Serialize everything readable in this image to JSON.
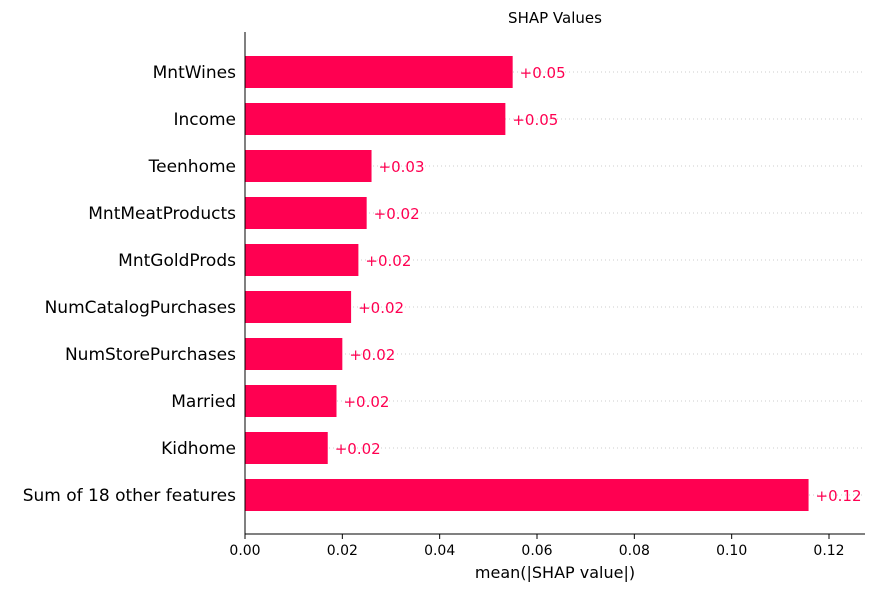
{
  "chart_data": {
    "type": "bar",
    "orientation": "horizontal",
    "title": "SHAP Values",
    "xlabel": "mean(|SHAP value|)",
    "ylabel": "",
    "categories": [
      "MntWines",
      "Income",
      "Teenhome",
      "MntMeatProducts",
      "MntGoldProds",
      "NumCatalogPurchases",
      "NumStorePurchases",
      "Married",
      "Kidhome",
      "Sum of 18 other features"
    ],
    "values": [
      0.055,
      0.0535,
      0.026,
      0.025,
      0.0233,
      0.0218,
      0.02,
      0.0188,
      0.017,
      0.1158
    ],
    "value_labels": [
      "+0.05",
      "+0.05",
      "+0.03",
      "+0.02",
      "+0.02",
      "+0.02",
      "+0.02",
      "+0.02",
      "+0.02",
      "+0.12"
    ],
    "xlim": [
      0,
      0.127
    ],
    "xticks": [
      0,
      0.02,
      0.04,
      0.06,
      0.08,
      0.1,
      0.12
    ],
    "xtick_labels": [
      "0.00",
      "0.02",
      "0.04",
      "0.06",
      "0.08",
      "0.10",
      "0.12"
    ],
    "grid": "dotted horizontal guide per row",
    "legend": "none",
    "colors": {
      "bar": "#ff0051",
      "label": "#ff0051",
      "axis": "#000000",
      "guide": "#cccccc"
    }
  }
}
